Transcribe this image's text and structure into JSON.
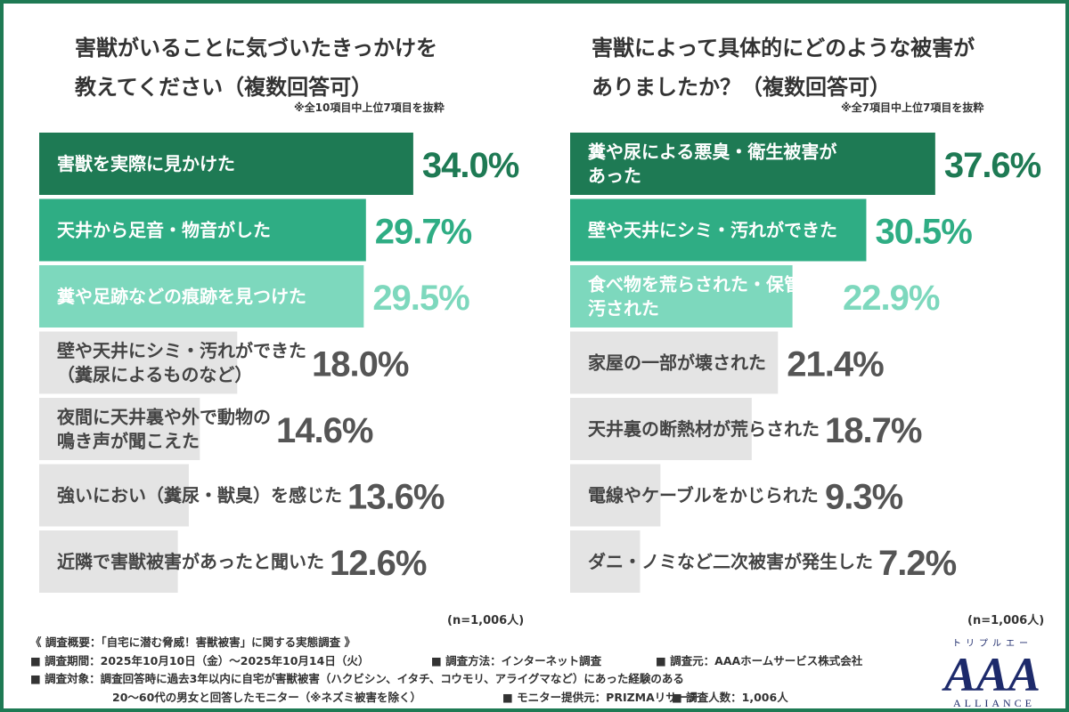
{
  "left": {
    "title_line1": "害獣がいることに気づいたきっかけを",
    "title_line2": "教えてください（複数回答可）",
    "note": "※全10項目中上位7項目を抜粋",
    "n_label": "(n=1,006人)"
  },
  "right": {
    "title_line1": "害獣によって具体的にどのような被害が",
    "title_line2": "ありましたか？（複数回答可）",
    "note": "※全7項目中上位7項目を抜粋",
    "n_label": "(n=1,006人)"
  },
  "chart_data": [
    {
      "type": "bar",
      "orientation": "horizontal",
      "title": "害獣がいることに気づいたきっかけを教えてください（複数回答可）",
      "categories": [
        [
          "害獣を実際に見かけた"
        ],
        [
          "天井から足音・物音がした"
        ],
        [
          "糞や足跡などの痕跡を見つけた"
        ],
        [
          "壁や天井にシミ・汚れができた",
          "（糞尿によるものなど）"
        ],
        [
          "夜間に天井裏や外で動物の",
          "鳴き声が聞こえた"
        ],
        [
          "強いにおい（糞尿・獣臭）を感じた"
        ],
        [
          "近隣で害獣被害があったと聞いた"
        ]
      ],
      "values": [
        34.0,
        29.7,
        29.5,
        18.0,
        14.6,
        13.6,
        12.6
      ],
      "value_labels": [
        "34.0%",
        "29.7%",
        "29.5%",
        "18.0%",
        "14.6%",
        "13.6%",
        "12.6%"
      ],
      "bar_colors": [
        "#1e7a54",
        "#2fad84",
        "#7dd8bd",
        "#e4e4e4",
        "#e4e4e4",
        "#e4e4e4",
        "#e4e4e4"
      ],
      "value_colors": [
        "#1e7a54",
        "#2fad84",
        "#7dd8bd",
        "#555555",
        "#555555",
        "#555555",
        "#555555"
      ],
      "label_colors": [
        "#ffffff",
        "#ffffff",
        "#ffffff",
        "#444444",
        "#444444",
        "#444444",
        "#444444"
      ],
      "unit": "%"
    },
    {
      "type": "bar",
      "orientation": "horizontal",
      "title": "害獣によって具体的にどのような被害がありましたか？（複数回答可）",
      "categories": [
        [
          "糞や尿による悪臭・衛生被害が",
          "あった"
        ],
        [
          "壁や天井にシミ・汚れができた"
        ],
        [
          "食べ物を荒らされた・保管物を",
          "汚された"
        ],
        [
          "家屋の一部が壊された"
        ],
        [
          "天井裏の断熱材が荒らされた"
        ],
        [
          "電線やケーブルをかじられた"
        ],
        [
          "ダニ・ノミなど二次被害が発生した"
        ]
      ],
      "values": [
        37.6,
        30.5,
        22.9,
        21.4,
        18.7,
        9.3,
        7.2
      ],
      "value_labels": [
        "37.6%",
        "30.5%",
        "22.9%",
        "21.4%",
        "18.7%",
        "9.3%",
        "7.2%"
      ],
      "bar_colors": [
        "#1e7a54",
        "#2fad84",
        "#7dd8bd",
        "#e4e4e4",
        "#e4e4e4",
        "#e4e4e4",
        "#e4e4e4"
      ],
      "value_colors": [
        "#1e7a54",
        "#2fad84",
        "#7dd8bd",
        "#555555",
        "#555555",
        "#555555",
        "#555555"
      ],
      "label_colors": [
        "#ffffff",
        "#ffffff",
        "#ffffff",
        "#444444",
        "#444444",
        "#444444",
        "#444444"
      ],
      "unit": "%"
    }
  ],
  "footer": {
    "line1": "《 調査概要：「自宅に潜む脅威！害獣被害」に関する実態調査 》",
    "period": "■ 調査期間：2025年10月10日（金）〜2025年10月14日（火）",
    "method": "■ 調査方法：インターネット調査",
    "source": "■ 調査元：AAAホームサービス株式会社",
    "target": "■ 調査対象：調査回答時に過去3年以内に自宅が害獣被害（ハクビシン、イタチ、コウモリ、アライグマなど）にあった経験のある",
    "target2": "20〜60代の男女と回答したモニター（※ネズミ被害を除く）",
    "provider": "■ モニター提供元：PRIZMAリサーチ",
    "count": "■ 調査人数：1,006人"
  },
  "logo": {
    "kana": "トリプルエー",
    "main": "AAA",
    "sub": "ALLIANCE",
    "color": "#1d2a6b"
  }
}
